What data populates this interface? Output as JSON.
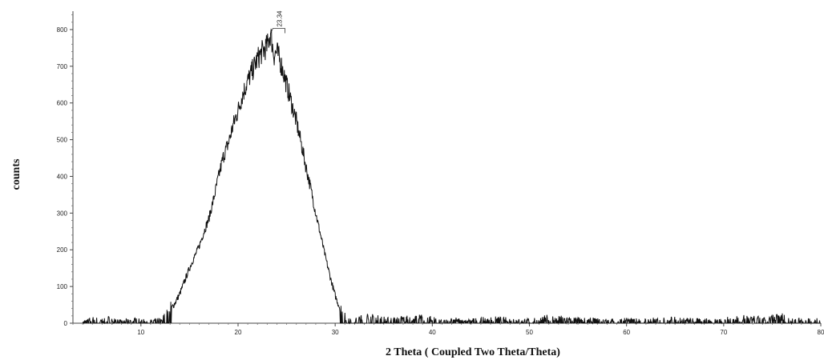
{
  "chart_data": {
    "type": "line",
    "title": "",
    "xlabel": "2 Theta ( Coupled Two Theta/Theta)",
    "ylabel": "counts",
    "xlim": [
      3,
      80
    ],
    "ylim": [
      0,
      850
    ],
    "xticks": [
      10,
      20,
      30,
      40,
      50,
      60,
      70,
      80
    ],
    "yticks": [
      0,
      100,
      200,
      300,
      400,
      500,
      600,
      700,
      800
    ],
    "grid": false,
    "legend": "none",
    "line_color": "#111111",
    "peak_annotation": {
      "x": 23.34,
      "y": 790,
      "label": "23.34"
    },
    "series": [
      {
        "x": [
          4,
          5,
          6,
          7,
          8,
          9,
          10,
          11,
          12,
          12.5,
          13,
          13.5,
          14,
          14.5,
          15,
          15.5,
          16,
          16.5,
          17,
          17.5,
          18,
          18.5,
          19,
          19.5,
          20,
          20.5,
          21,
          21.5,
          22,
          22.5,
          23,
          23.34,
          23.7,
          24,
          24.5,
          25,
          25.5,
          26,
          26.5,
          27,
          27.5,
          28,
          28.5,
          29,
          29.5,
          30,
          30.5,
          31,
          31.5,
          32,
          33,
          34,
          35,
          36,
          38,
          40,
          42,
          44,
          46,
          48,
          50,
          52,
          54,
          56,
          58,
          60,
          62,
          64,
          66,
          68,
          70,
          72,
          74,
          76,
          78,
          80
        ],
        "values": [
          5,
          12,
          8,
          15,
          5,
          10,
          8,
          5,
          10,
          20,
          35,
          55,
          80,
          115,
          150,
          180,
          210,
          250,
          285,
          340,
          400,
          455,
          490,
          540,
          580,
          625,
          660,
          690,
          720,
          740,
          755,
          790,
          730,
          740,
          700,
          650,
          600,
          550,
          490,
          425,
          365,
          300,
          240,
          180,
          125,
          75,
          40,
          20,
          10,
          8,
          20,
          15,
          12,
          10,
          18,
          12,
          10,
          8,
          12,
          10,
          8,
          15,
          12,
          10,
          8,
          10,
          8,
          12,
          10,
          8,
          10,
          15,
          12,
          18,
          10,
          8
        ]
      }
    ]
  }
}
